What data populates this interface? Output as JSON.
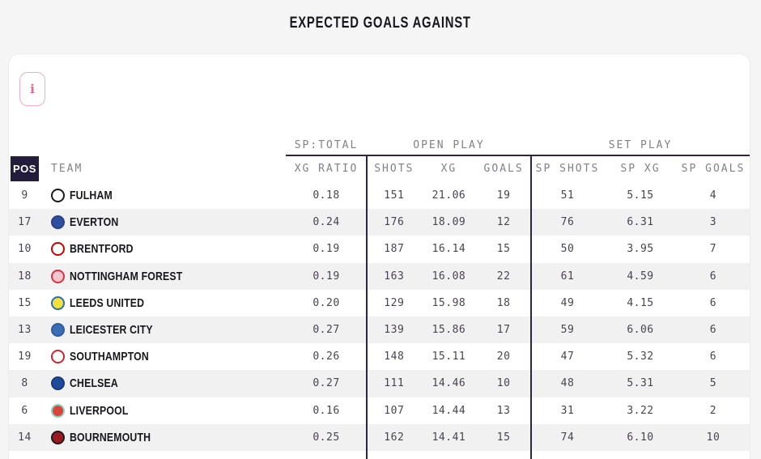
{
  "title": "EXPECTED GOALS AGAINST",
  "info_button": {
    "label": "i"
  },
  "colors": {
    "accent_line": "#2f2444",
    "pos_box_bg": "#241c3b",
    "row_alt_bg": "#f1f1f1",
    "header_text": "#81818b",
    "value_text": "#49444f",
    "team_text": "#17171b",
    "info_pink": "#ee5f8e",
    "info_border": "#f8a9c6",
    "page_bg": "#f5f5f5",
    "card_bg": "#ffffff"
  },
  "table": {
    "pos_header": "POS",
    "team_header": "TEAM",
    "groups": [
      {
        "label": "SP:TOTAL"
      },
      {
        "label": "OPEN PLAY"
      },
      {
        "label": "SET PLAY"
      }
    ],
    "columns": [
      "XG RATIO",
      "SHOTS",
      "XG",
      "GOALS",
      "SP SHOTS",
      "SP XG",
      "SP GOALS"
    ],
    "rows": [
      {
        "pos": "9",
        "team": "FULHAM",
        "crest": {
          "bg": "#ffffff",
          "ring": "#1a1a1a"
        },
        "values": [
          "0.18",
          "151",
          "21.06",
          "19",
          "51",
          "5.15",
          "4"
        ]
      },
      {
        "pos": "17",
        "team": "EVERTON",
        "crest": {
          "bg": "#2d4f9e",
          "ring": "#27408f"
        },
        "values": [
          "0.24",
          "176",
          "18.09",
          "12",
          "76",
          "6.31",
          "3"
        ]
      },
      {
        "pos": "10",
        "team": "BRENTFORD",
        "crest": {
          "bg": "#ffffff",
          "ring": "#d20000"
        },
        "values": [
          "0.19",
          "187",
          "16.14",
          "15",
          "50",
          "3.95",
          "7"
        ]
      },
      {
        "pos": "18",
        "team": "NOTTINGHAM FOREST",
        "crest": {
          "bg": "#f4c6cf",
          "ring": "#e0303f"
        },
        "values": [
          "0.19",
          "163",
          "16.08",
          "22",
          "61",
          "4.59",
          "6"
        ]
      },
      {
        "pos": "15",
        "team": "LEEDS UNITED",
        "crest": {
          "bg": "#f3e03c",
          "ring": "#2b6fb6"
        },
        "values": [
          "0.20",
          "129",
          "15.98",
          "18",
          "49",
          "4.15",
          "6"
        ]
      },
      {
        "pos": "13",
        "team": "LEICESTER CITY",
        "crest": {
          "bg": "#3a6db4",
          "ring": "#2a5ca8"
        },
        "values": [
          "0.27",
          "139",
          "15.86",
          "17",
          "59",
          "6.06",
          "6"
        ]
      },
      {
        "pos": "19",
        "team": "SOUTHAMPTON",
        "crest": {
          "bg": "#ffffff",
          "ring": "#cf2633"
        },
        "values": [
          "0.26",
          "148",
          "15.11",
          "20",
          "47",
          "5.32",
          "6"
        ]
      },
      {
        "pos": "8",
        "team": "CHELSEA",
        "crest": {
          "bg": "#1e4a9e",
          "ring": "#16397f"
        },
        "values": [
          "0.27",
          "111",
          "14.46",
          "10",
          "48",
          "5.31",
          "5"
        ]
      },
      {
        "pos": "6",
        "team": "LIVERPOOL",
        "crest": {
          "bg": "#d8453c",
          "ring": "#8fd0c2"
        },
        "values": [
          "0.16",
          "107",
          "14.44",
          "13",
          "31",
          "3.22",
          "2"
        ]
      },
      {
        "pos": "14",
        "team": "BOURNEMOUTH",
        "crest": {
          "bg": "#9d1b20",
          "ring": "#1f1a17"
        },
        "values": [
          "0.25",
          "162",
          "14.41",
          "15",
          "74",
          "6.10",
          "10"
        ]
      }
    ]
  }
}
